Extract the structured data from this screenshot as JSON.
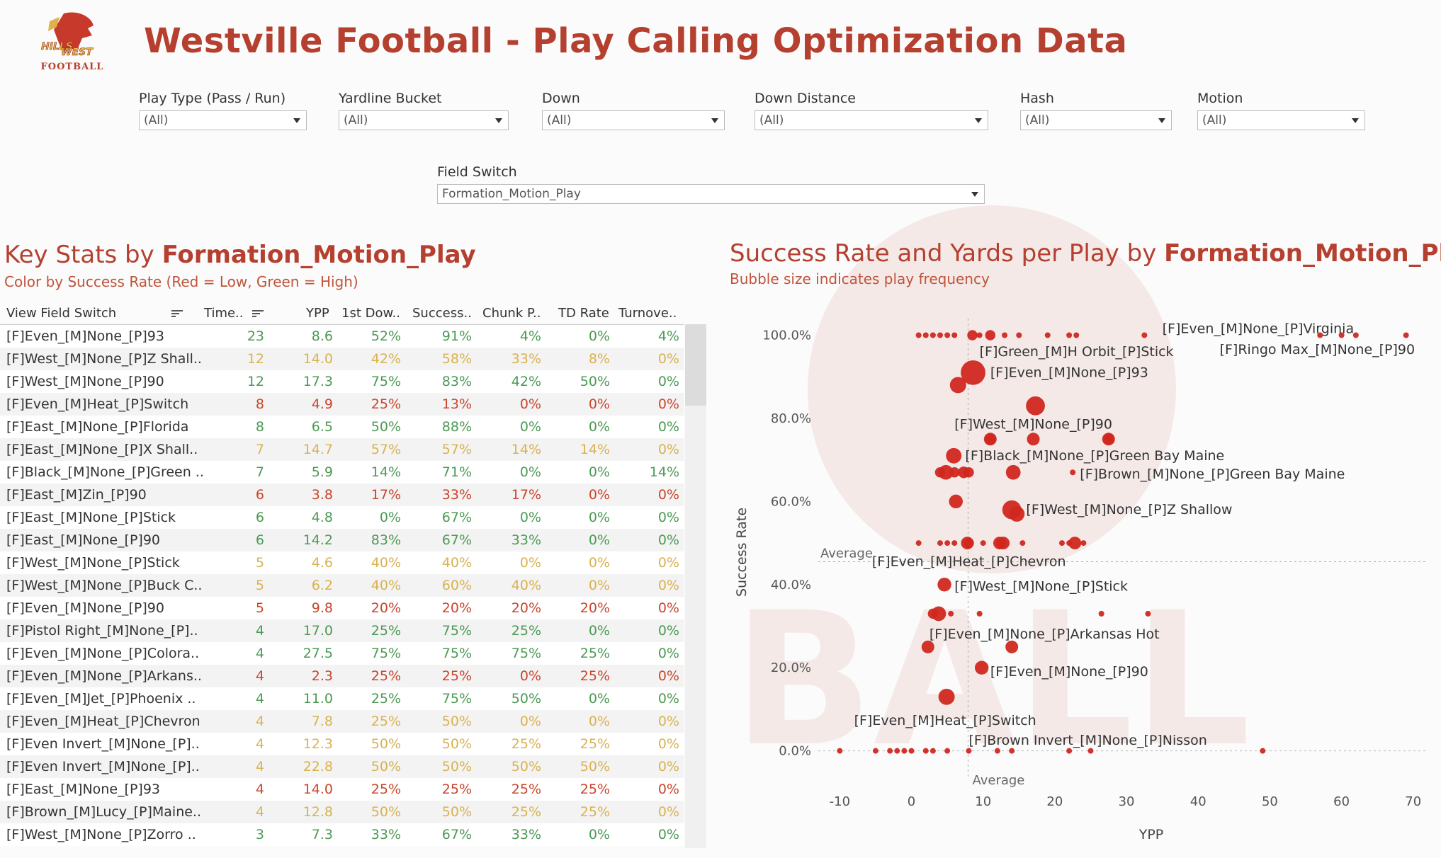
{
  "title": "Westville Football - Play Calling Optimization Data",
  "logo": {
    "line1": "HILLS",
    "line2": "WEST",
    "line3": "FOOTBALL"
  },
  "colors": {
    "brand": "#b5402f",
    "bubble": "#d0281f",
    "low": "#c9462c",
    "mid": "#d9b250",
    "high": "#4c9a54"
  },
  "filters": [
    {
      "label": "Play Type (Pass / Run)",
      "value": "(All)"
    },
    {
      "label": "Yardline Bucket",
      "value": "(All)"
    },
    {
      "label": "Down",
      "value": "(All)"
    },
    {
      "label": "Down Distance",
      "value": "(All)"
    },
    {
      "label": "Hash",
      "value": "(All)"
    },
    {
      "label": "Motion",
      "value": "(All)"
    },
    {
      "label": "Field Switch",
      "value": "Formation_Motion_Play"
    }
  ],
  "left_panel": {
    "title_prefix": "Key Stats by ",
    "title_bold": "Formation_Motion_Play",
    "subtitle": "Color by Success Rate (Red = Low, Green = High)",
    "columns": [
      "View Field Switch",
      "Time..",
      "YPP",
      "1st Dow..",
      "Success..",
      "Chunk P..",
      "TD Rate",
      "Turnove.."
    ],
    "rows": [
      {
        "name": "[F]Even_[M]None_[P]93",
        "times": "23",
        "ypp": "8.6",
        "first": "52%",
        "success": "91%",
        "chunk": "4%",
        "td": "0%",
        "to": "4%",
        "color": "#4c9a54"
      },
      {
        "name": "[F]West_[M]None_[P]Z Shall..",
        "times": "12",
        "ypp": "14.0",
        "first": "42%",
        "success": "58%",
        "chunk": "33%",
        "td": "8%",
        "to": "0%",
        "color": "#d9b250"
      },
      {
        "name": "[F]West_[M]None_[P]90",
        "times": "12",
        "ypp": "17.3",
        "first": "75%",
        "success": "83%",
        "chunk": "42%",
        "td": "50%",
        "to": "0%",
        "color": "#4c9a54"
      },
      {
        "name": "[F]Even_[M]Heat_[P]Switch",
        "times": "8",
        "ypp": "4.9",
        "first": "25%",
        "success": "13%",
        "chunk": "0%",
        "td": "0%",
        "to": "0%",
        "color": "#c9462c"
      },
      {
        "name": "[F]East_[M]None_[P]Florida",
        "times": "8",
        "ypp": "6.5",
        "first": "50%",
        "success": "88%",
        "chunk": "0%",
        "td": "0%",
        "to": "0%",
        "color": "#4c9a54"
      },
      {
        "name": "[F]East_[M]None_[P]X Shall..",
        "times": "7",
        "ypp": "14.7",
        "first": "57%",
        "success": "57%",
        "chunk": "14%",
        "td": "14%",
        "to": "0%",
        "color": "#d9b250"
      },
      {
        "name": "[F]Black_[M]None_[P]Green ..",
        "times": "7",
        "ypp": "5.9",
        "first": "14%",
        "success": "71%",
        "chunk": "0%",
        "td": "0%",
        "to": "14%",
        "color": "#4c9a54"
      },
      {
        "name": "[F]East_[M]Zin_[P]90",
        "times": "6",
        "ypp": "3.8",
        "first": "17%",
        "success": "33%",
        "chunk": "17%",
        "td": "0%",
        "to": "0%",
        "color": "#c9462c"
      },
      {
        "name": "[F]East_[M]None_[P]Stick",
        "times": "6",
        "ypp": "4.8",
        "first": "0%",
        "success": "67%",
        "chunk": "0%",
        "td": "0%",
        "to": "0%",
        "color": "#4c9a54"
      },
      {
        "name": "[F]East_[M]None_[P]90",
        "times": "6",
        "ypp": "14.2",
        "first": "83%",
        "success": "67%",
        "chunk": "33%",
        "td": "0%",
        "to": "0%",
        "color": "#4c9a54"
      },
      {
        "name": "[F]West_[M]None_[P]Stick",
        "times": "5",
        "ypp": "4.6",
        "first": "40%",
        "success": "40%",
        "chunk": "0%",
        "td": "0%",
        "to": "0%",
        "color": "#d9b250"
      },
      {
        "name": "[F]West_[M]None_[P]Buck C..",
        "times": "5",
        "ypp": "6.2",
        "first": "40%",
        "success": "60%",
        "chunk": "40%",
        "td": "0%",
        "to": "0%",
        "color": "#d9b250"
      },
      {
        "name": "[F]Even_[M]None_[P]90",
        "times": "5",
        "ypp": "9.8",
        "first": "20%",
        "success": "20%",
        "chunk": "20%",
        "td": "20%",
        "to": "0%",
        "color": "#c9462c"
      },
      {
        "name": "[F]Pistol Right_[M]None_[P]..",
        "times": "4",
        "ypp": "17.0",
        "first": "25%",
        "success": "75%",
        "chunk": "25%",
        "td": "0%",
        "to": "0%",
        "color": "#4c9a54"
      },
      {
        "name": "[F]Even_[M]None_[P]Colora..",
        "times": "4",
        "ypp": "27.5",
        "first": "75%",
        "success": "75%",
        "chunk": "75%",
        "td": "25%",
        "to": "0%",
        "color": "#4c9a54"
      },
      {
        "name": "[F]Even_[M]None_[P]Arkans..",
        "times": "4",
        "ypp": "2.3",
        "first": "25%",
        "success": "25%",
        "chunk": "0%",
        "td": "25%",
        "to": "0%",
        "color": "#c9462c"
      },
      {
        "name": "[F]Even_[M]Jet_[P]Phoenix ..",
        "times": "4",
        "ypp": "11.0",
        "first": "25%",
        "success": "75%",
        "chunk": "50%",
        "td": "0%",
        "to": "0%",
        "color": "#4c9a54"
      },
      {
        "name": "[F]Even_[M]Heat_[P]Chevron",
        "times": "4",
        "ypp": "7.8",
        "first": "25%",
        "success": "50%",
        "chunk": "0%",
        "td": "0%",
        "to": "0%",
        "color": "#d9b250"
      },
      {
        "name": "[F]Even Invert_[M]None_[P]..",
        "times": "4",
        "ypp": "12.3",
        "first": "50%",
        "success": "50%",
        "chunk": "25%",
        "td": "25%",
        "to": "0%",
        "color": "#d9b250"
      },
      {
        "name": "[F]Even Invert_[M]None_[P]..",
        "times": "4",
        "ypp": "22.8",
        "first": "50%",
        "success": "50%",
        "chunk": "50%",
        "td": "50%",
        "to": "0%",
        "color": "#d9b250"
      },
      {
        "name": "[F]East_[M]None_[P]93",
        "times": "4",
        "ypp": "14.0",
        "first": "25%",
        "success": "25%",
        "chunk": "25%",
        "td": "25%",
        "to": "0%",
        "color": "#c9462c"
      },
      {
        "name": "[F]Brown_[M]Lucy_[P]Maine..",
        "times": "4",
        "ypp": "12.8",
        "first": "50%",
        "success": "50%",
        "chunk": "25%",
        "td": "25%",
        "to": "0%",
        "color": "#d9b250"
      },
      {
        "name": "[F]West_[M]None_[P]Zorro ..",
        "times": "3",
        "ypp": "7.3",
        "first": "33%",
        "success": "67%",
        "chunk": "33%",
        "td": "0%",
        "to": "0%",
        "color": "#4c9a54"
      }
    ]
  },
  "right_panel": {
    "title_prefix": "Success Rate and Yards per Play by ",
    "title_bold": "Formation_Motion_Play",
    "subtitle": "Bubble size indicates play frequency"
  },
  "chart_data": {
    "type": "scatter",
    "title": "Success Rate and Yards per Play by Formation_Motion_Play",
    "xlabel": "YPP",
    "ylabel": "Success Rate",
    "xlim": [
      -13,
      72
    ],
    "ylim": [
      -5,
      104
    ],
    "x_ticks": [
      "-10",
      "0",
      "10",
      "20",
      "30",
      "40",
      "50",
      "60",
      "70"
    ],
    "x_tick_values": [
      -10,
      0,
      10,
      20,
      30,
      40,
      50,
      60,
      70
    ],
    "y_ticks": [
      "0.0%",
      "20.0%",
      "40.0%",
      "60.0%",
      "80.0%",
      "100.0%"
    ],
    "y_tick_values": [
      0,
      20,
      40,
      60,
      80,
      100
    ],
    "average_x": 7.9,
    "average_y": 45.5,
    "average_label": "Average",
    "points": [
      {
        "x": 8.6,
        "y": 91,
        "n": 23
      },
      {
        "x": 17.3,
        "y": 83,
        "n": 12
      },
      {
        "x": 14.0,
        "y": 58,
        "n": 12
      },
      {
        "x": 4.9,
        "y": 13,
        "n": 8
      },
      {
        "x": 6.5,
        "y": 88,
        "n": 8
      },
      {
        "x": 14.7,
        "y": 57,
        "n": 7
      },
      {
        "x": 5.9,
        "y": 71,
        "n": 7
      },
      {
        "x": 3.8,
        "y": 33,
        "n": 6
      },
      {
        "x": 4.8,
        "y": 67,
        "n": 6
      },
      {
        "x": 14.2,
        "y": 67,
        "n": 6
      },
      {
        "x": 4.6,
        "y": 40,
        "n": 5
      },
      {
        "x": 6.2,
        "y": 60,
        "n": 5
      },
      {
        "x": 9.8,
        "y": 20,
        "n": 5
      },
      {
        "x": 17.0,
        "y": 75,
        "n": 4
      },
      {
        "x": 27.5,
        "y": 75,
        "n": 4
      },
      {
        "x": 2.3,
        "y": 25,
        "n": 4
      },
      {
        "x": 11.0,
        "y": 75,
        "n": 4
      },
      {
        "x": 7.8,
        "y": 50,
        "n": 4
      },
      {
        "x": 12.3,
        "y": 50,
        "n": 4
      },
      {
        "x": 22.8,
        "y": 50,
        "n": 4
      },
      {
        "x": 14.0,
        "y": 25,
        "n": 4
      },
      {
        "x": 12.8,
        "y": 50,
        "n": 4
      },
      {
        "x": 7.3,
        "y": 67,
        "n": 3
      },
      {
        "x": 1,
        "y": 100,
        "n": 1
      },
      {
        "x": 2,
        "y": 100,
        "n": 1
      },
      {
        "x": 3,
        "y": 100,
        "n": 1
      },
      {
        "x": 4,
        "y": 100,
        "n": 1
      },
      {
        "x": 5,
        "y": 100,
        "n": 1
      },
      {
        "x": 6,
        "y": 100,
        "n": 1
      },
      {
        "x": 8.5,
        "y": 100,
        "n": 2
      },
      {
        "x": 9.5,
        "y": 100,
        "n": 1
      },
      {
        "x": 11,
        "y": 100,
        "n": 2
      },
      {
        "x": 13,
        "y": 100,
        "n": 1
      },
      {
        "x": 15,
        "y": 100,
        "n": 1
      },
      {
        "x": 19,
        "y": 100,
        "n": 1
      },
      {
        "x": 22,
        "y": 100,
        "n": 1
      },
      {
        "x": 23,
        "y": 100,
        "n": 1
      },
      {
        "x": 32.5,
        "y": 100,
        "n": 1
      },
      {
        "x": 57,
        "y": 100,
        "n": 1
      },
      {
        "x": 60,
        "y": 100,
        "n": 1
      },
      {
        "x": 62,
        "y": 100,
        "n": 1
      },
      {
        "x": 69,
        "y": 100,
        "n": 1
      },
      {
        "x": 11,
        "y": 75,
        "n": 2
      },
      {
        "x": 27.5,
        "y": 75,
        "n": 2
      },
      {
        "x": 4,
        "y": 67,
        "n": 2
      },
      {
        "x": 6,
        "y": 67,
        "n": 2
      },
      {
        "x": 8,
        "y": 67,
        "n": 2
      },
      {
        "x": 22.5,
        "y": 67,
        "n": 1
      },
      {
        "x": 1,
        "y": 50,
        "n": 1
      },
      {
        "x": 4,
        "y": 50,
        "n": 1
      },
      {
        "x": 5,
        "y": 50,
        "n": 1
      },
      {
        "x": 6,
        "y": 50,
        "n": 1
      },
      {
        "x": 8,
        "y": 50,
        "n": 2
      },
      {
        "x": 10,
        "y": 50,
        "n": 1
      },
      {
        "x": 12.5,
        "y": 50,
        "n": 2
      },
      {
        "x": 15.5,
        "y": 50,
        "n": 1
      },
      {
        "x": 21,
        "y": 50,
        "n": 1
      },
      {
        "x": 22,
        "y": 50,
        "n": 1
      },
      {
        "x": 24,
        "y": 50,
        "n": 1
      },
      {
        "x": 3,
        "y": 33,
        "n": 2
      },
      {
        "x": 5.5,
        "y": 33,
        "n": 1
      },
      {
        "x": 9.5,
        "y": 33,
        "n": 1
      },
      {
        "x": 26.5,
        "y": 33,
        "n": 1
      },
      {
        "x": 33,
        "y": 33,
        "n": 1
      },
      {
        "x": -10,
        "y": 0,
        "n": 1
      },
      {
        "x": -5,
        "y": 0,
        "n": 1
      },
      {
        "x": -3,
        "y": 0,
        "n": 1
      },
      {
        "x": -2,
        "y": 0,
        "n": 1
      },
      {
        "x": -1,
        "y": 0,
        "n": 1
      },
      {
        "x": 0,
        "y": 0,
        "n": 1
      },
      {
        "x": 2,
        "y": 0,
        "n": 1
      },
      {
        "x": 3,
        "y": 0,
        "n": 1
      },
      {
        "x": 5,
        "y": 0,
        "n": 1
      },
      {
        "x": 8,
        "y": 0,
        "n": 1
      },
      {
        "x": 12,
        "y": 0,
        "n": 1
      },
      {
        "x": 14,
        "y": 0,
        "n": 1
      },
      {
        "x": 22,
        "y": 0,
        "n": 1
      },
      {
        "x": 25,
        "y": 0,
        "n": 1
      },
      {
        "x": 49,
        "y": 0,
        "n": 1
      }
    ],
    "annotations": [
      {
        "text": "[F]Even_[M]None_[P]Virginia",
        "x": 35,
        "y": 101.5
      },
      {
        "text": "[F]Green_[M]H Orbit_[P]Stick",
        "x": 9.5,
        "y": 96
      },
      {
        "text": "[F]Ringo Max_[M]None_[P]90",
        "x": 43,
        "y": 96.5
      },
      {
        "text": "[F]Even_[M]None_[P]93",
        "x": 11,
        "y": 91
      },
      {
        "text": "[F]West_[M]None_[P]90",
        "x": 6,
        "y": 78.5
      },
      {
        "text": "[F]Black_[M]None_[P]Green Bay Maine",
        "x": 7.5,
        "y": 71
      },
      {
        "text": "[F]Brown_[M]None_[P]Green Bay Maine",
        "x": 23.5,
        "y": 66.5
      },
      {
        "text": "[F]West_[M]None_[P]Z Shallow",
        "x": 16,
        "y": 58
      },
      {
        "text": "[F]Even_[M]Heat_[P]Chevron",
        "x": -5.5,
        "y": 45.5
      },
      {
        "text": "[F]West_[M]None_[P]Stick",
        "x": 6,
        "y": 39.5
      },
      {
        "text": "[F]Even_[M]None_[P]Arkansas Hot",
        "x": 2.5,
        "y": 28
      },
      {
        "text": "[F]Even_[M]None_[P]90",
        "x": 11,
        "y": 19
      },
      {
        "text": "[F]Even_[M]Heat_[P]Switch",
        "x": -8,
        "y": 7.3
      },
      {
        "text": "[F]Brown Invert_[M]None_[P]Nisson",
        "x": 8,
        "y": 2.5
      }
    ]
  }
}
